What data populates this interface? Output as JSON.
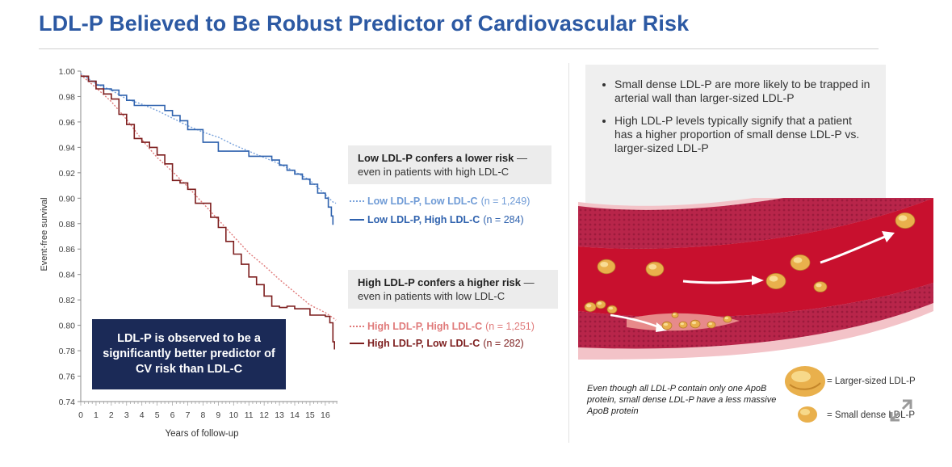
{
  "title": "LDL-P Believed to Be Robust Predictor of Cardiovascular Risk",
  "chart_data": {
    "type": "line",
    "xlabel": "Years of follow-up",
    "ylabel": "Event-free survival",
    "xlim": [
      0,
      16.8
    ],
    "ylim": [
      0.74,
      1.0
    ],
    "x_ticks": [
      0,
      1,
      2,
      3,
      4,
      5,
      6,
      7,
      8,
      9,
      10,
      11,
      12,
      13,
      14,
      15,
      16
    ],
    "y_ticks": [
      1.0,
      0.98,
      0.96,
      0.94,
      0.92,
      0.9,
      0.88,
      0.86,
      0.84,
      0.82,
      0.8,
      0.78,
      0.76,
      0.74
    ],
    "y_tick_labels": [
      "1.00",
      "0.98",
      "0.96",
      "0.94",
      "0.92",
      "0.90",
      "0.88",
      "0.86",
      "0.84",
      "0.82",
      "0.80",
      "0.78",
      "0.76",
      "0.74"
    ],
    "grid": false,
    "series": [
      {
        "name": "Low LDL-P, Low LDL-C",
        "n": "(n = 1,249)",
        "color": "#7aa3dc",
        "style": "dotted",
        "x": [
          0,
          0.5,
          1,
          2,
          3,
          4,
          5,
          6,
          7,
          8,
          9,
          10,
          11,
          12,
          13,
          14,
          15,
          16,
          16.5,
          16.7
        ],
        "y": [
          0.998,
          0.994,
          0.99,
          0.985,
          0.978,
          0.974,
          0.969,
          0.963,
          0.957,
          0.952,
          0.948,
          0.942,
          0.937,
          0.932,
          0.927,
          0.921,
          0.914,
          0.903,
          0.897,
          0.896
        ]
      },
      {
        "name": "Low LDL-P, High LDL-C",
        "n": "(n = 284)",
        "color": "#2f62ae",
        "style": "solid",
        "x": [
          0,
          0.5,
          1,
          1.5,
          2,
          2.5,
          3,
          3.5,
          4,
          5,
          5.5,
          6,
          6.5,
          7,
          8,
          9,
          10,
          11,
          12,
          12.5,
          13,
          13.5,
          14,
          14.5,
          15,
          15.5,
          16,
          16.2,
          16.4,
          16.5
        ],
        "y": [
          0.996,
          0.992,
          0.989,
          0.986,
          0.985,
          0.981,
          0.977,
          0.973,
          0.973,
          0.973,
          0.969,
          0.965,
          0.961,
          0.954,
          0.944,
          0.937,
          0.937,
          0.933,
          0.933,
          0.93,
          0.926,
          0.922,
          0.919,
          0.915,
          0.911,
          0.904,
          0.9,
          0.893,
          0.886,
          0.879
        ]
      },
      {
        "name": "High LDL-P, High LDL-C",
        "n": "(n = 1,251)",
        "color": "#e07a7a",
        "style": "dotted",
        "x": [
          0,
          1,
          2,
          3,
          4,
          5,
          6,
          7,
          8,
          9,
          10,
          11,
          12,
          13,
          14,
          15,
          16,
          16.5,
          16.7
        ],
        "y": [
          0.997,
          0.987,
          0.976,
          0.962,
          0.946,
          0.932,
          0.921,
          0.909,
          0.896,
          0.883,
          0.87,
          0.857,
          0.847,
          0.836,
          0.826,
          0.816,
          0.81,
          0.806,
          0.804
        ]
      },
      {
        "name": "High LDL-P, Low LDL-C",
        "n": "(n = 282)",
        "color": "#7d1e1e",
        "style": "solid",
        "x": [
          0,
          0.5,
          1,
          1.5,
          2,
          2.5,
          3,
          3.5,
          4,
          4.5,
          5,
          5.5,
          6,
          6.5,
          7,
          7.5,
          8,
          8.5,
          9,
          9.5,
          10,
          10.5,
          11,
          11.5,
          12,
          12.5,
          13,
          13.5,
          14,
          14.5,
          15,
          15.5,
          16,
          16.3,
          16.5,
          16.6
        ],
        "y": [
          0.996,
          0.992,
          0.986,
          0.982,
          0.978,
          0.966,
          0.958,
          0.947,
          0.944,
          0.94,
          0.934,
          0.927,
          0.914,
          0.912,
          0.907,
          0.896,
          0.896,
          0.885,
          0.877,
          0.866,
          0.856,
          0.848,
          0.838,
          0.832,
          0.823,
          0.815,
          0.814,
          0.815,
          0.813,
          0.813,
          0.808,
          0.808,
          0.807,
          0.802,
          0.787,
          0.781
        ]
      }
    ]
  },
  "boxes": {
    "low": {
      "bold": "Low LDL-P confers a lower risk",
      "rest": " —",
      "line2": "even in patients with high LDL-C"
    },
    "high": {
      "bold": "High LDL-P confers a higher risk",
      "rest": " —",
      "line2": "even in patients with low LDL-C"
    }
  },
  "callout": "LDL-P is observed to be a significantly better predictor of CV risk than LDL-C",
  "bullets": [
    "Small dense LDL-P are more likely to be trapped in arterial wall than larger-sized LDL-P",
    "High LDL-P levels typically signify that a patient has a higher proportion of small dense LDL-P vs. larger-sized LDL-P"
  ],
  "footnote": "Even though all LDL-P contain only one ApoB protein, small dense LDL-P have a less massive ApoB protein",
  "key": {
    "large": "= Larger-sized LDL-P",
    "small": "= Small dense LDL-P"
  },
  "colors": {
    "title": "#2c59a3",
    "callout_bg": "#1b2a57",
    "artery_wall": "#b8254a",
    "lumen": "#c8102e",
    "particle": "#e9b04c"
  }
}
